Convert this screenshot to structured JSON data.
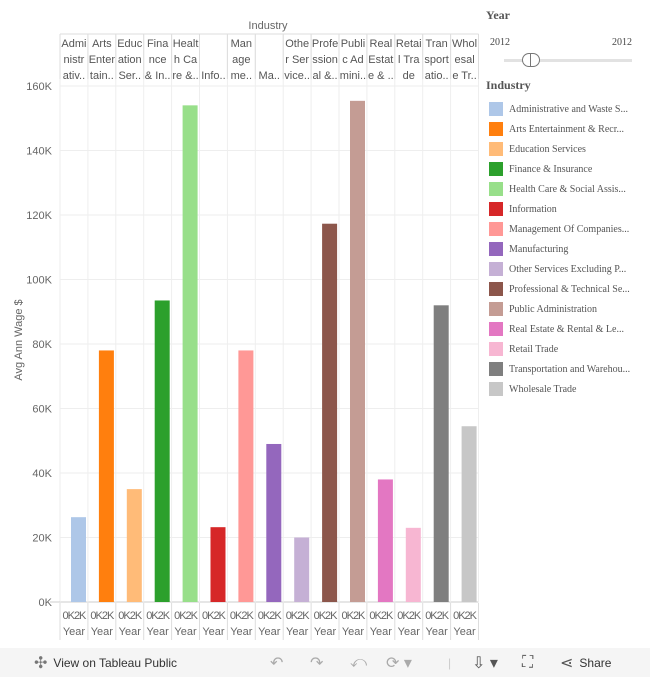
{
  "chart_data": {
    "type": "bar",
    "title": "",
    "column_header_title": "Industry",
    "ylabel": "Avg Ann Wage $",
    "ylim": [
      0,
      160000
    ],
    "yticks": [
      "0K",
      "20K",
      "40K",
      "60K",
      "80K",
      "100K",
      "120K",
      "140K",
      "160K"
    ],
    "grid": true,
    "legend_position": "right",
    "column_labels": [
      [
        "Admi",
        "nistr",
        "ativ.."
      ],
      [
        "Arts",
        "Enter",
        "tain.."
      ],
      [
        "Educ",
        "ation",
        "Ser.."
      ],
      [
        "Fina",
        "nce",
        "& In.."
      ],
      [
        "Healt",
        "h Ca",
        "re &.."
      ],
      [
        "",
        "",
        "Info.."
      ],
      [
        "Man",
        "age",
        "me.."
      ],
      [
        "",
        "",
        "Ma.."
      ],
      [
        "Othe",
        "r Ser",
        "vice.."
      ],
      [
        "Profe",
        "ssion",
        "al &.."
      ],
      [
        "Publi",
        "c Ad",
        "mini.."
      ],
      [
        "Real",
        "Estat",
        "e & .."
      ],
      [
        "Retai",
        "l Tra",
        "de"
      ],
      [
        "Tran",
        "sport",
        "atio.."
      ],
      [
        "Whol",
        "esal",
        "e Tr.."
      ]
    ],
    "bottom_tick_label": "0K2K",
    "bottom_axis_label": "Year",
    "categories": [
      "Administrative and Waste S...",
      "Arts Entertainment & Recr...",
      "Education Services",
      "Finance & Insurance",
      "Health Care & Social Assis...",
      "Information",
      "Management Of Companies...",
      "Manufacturing",
      "Other Services Excluding P...",
      "Professional & Technical Se...",
      "Public Administration",
      "Real Estate & Rental & Le...",
      "Retail Trade",
      "Transportation and Warehou...",
      "Wholesale Trade"
    ],
    "values": [
      26300,
      78000,
      35000,
      93500,
      154000,
      23200,
      78000,
      49000,
      20000,
      117300,
      155400,
      38000,
      23000,
      92000,
      54500
    ],
    "colors": [
      "#aec7e8",
      "#ff7f0e",
      "#ffbb78",
      "#2ca02c",
      "#98df8a",
      "#d62728",
      "#ff9896",
      "#9467bd",
      "#c5b0d5",
      "#8c564b",
      "#c49c94",
      "#e377c2",
      "#f7b6d2",
      "#7f7f7f",
      "#c7c7c7"
    ]
  },
  "filter": {
    "title": "Year",
    "min": "2012",
    "max": "2012"
  },
  "legend": {
    "title": "Industry"
  },
  "toolbar": {
    "view_label": "View on Tableau Public",
    "share_label": "Share"
  }
}
